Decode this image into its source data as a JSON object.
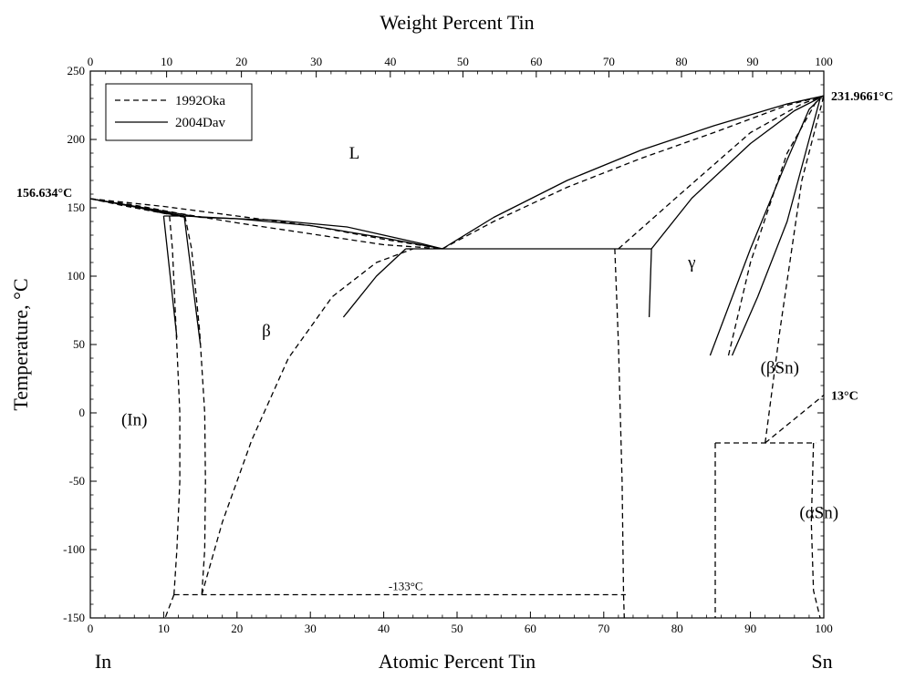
{
  "chart_data": {
    "type": "line",
    "title": "",
    "x_axis_bottom": {
      "label": "Atomic Percent Tin",
      "range": [
        0,
        100
      ],
      "ticks": [
        0,
        10,
        20,
        30,
        40,
        50,
        60,
        70,
        80,
        90,
        100
      ],
      "tick_labels": [
        "0",
        "10",
        "20",
        "30",
        "40",
        "50",
        "60",
        "70",
        "80",
        "90",
        "100"
      ]
    },
    "x_axis_top": {
      "label": "Weight Percent Tin",
      "ticks_wt": [
        0,
        10,
        20,
        30,
        40,
        50,
        60,
        70,
        80,
        90,
        100
      ],
      "ticks_at": [
        0,
        10.4,
        20.6,
        30.8,
        40.9,
        50.8,
        60.8,
        70.7,
        80.6,
        90.3,
        100
      ],
      "tick_labels": [
        "0",
        "10",
        "20",
        "30",
        "40",
        "50",
        "60",
        "70",
        "80",
        "90",
        "100"
      ]
    },
    "y_axis": {
      "label": "Temperature, °C",
      "range": [
        -150,
        250
      ],
      "ticks": [
        -150,
        -100,
        -50,
        0,
        50,
        100,
        150,
        200,
        250
      ],
      "tick_labels": [
        "-150",
        "-100",
        "-50",
        "0",
        "50",
        "100",
        "150",
        "200",
        "250"
      ]
    },
    "element_labels": {
      "left": "In",
      "right": "Sn"
    },
    "legend": {
      "position": "top-left",
      "entries": [
        {
          "label": "1992Oka",
          "style": "dashed"
        },
        {
          "label": "2004Dav",
          "style": "solid"
        }
      ]
    },
    "region_labels": [
      {
        "text": "L",
        "x": 36,
        "y": 190
      },
      {
        "text": "β",
        "x": 24,
        "y": 60
      },
      {
        "text": "γ",
        "x": 82,
        "y": 110
      },
      {
        "text": "(In)",
        "x": 6,
        "y": -5
      },
      {
        "text": "(βSn)",
        "x": 94,
        "y": 33
      },
      {
        "text": "(αSn)",
        "x": 102,
        "y": -73
      }
    ],
    "annotations": [
      {
        "text": "156.634°C",
        "x": 0,
        "y": 156.634,
        "anchor": "left"
      },
      {
        "text": "231.9661°C",
        "x": 100,
        "y": 231.9661,
        "anchor": "right"
      },
      {
        "text": "13°C",
        "x": 100,
        "y": 13,
        "anchor": "right"
      },
      {
        "text": "-133°C",
        "x": 43,
        "y": -133,
        "anchor": "center"
      }
    ],
    "series": [
      {
        "source": "1992Oka",
        "style": "dashed",
        "curves": [
          {
            "points": [
              [
                0,
                156.634
              ],
              [
                5,
                151
              ],
              [
                10,
                146
              ],
              [
                13,
                143
              ]
            ]
          },
          {
            "points": [
              [
                0,
                156.634
              ],
              [
                6,
                152
              ],
              [
                12,
                146
              ],
              [
                20,
                139
              ],
              [
                30,
                131
              ],
              [
                40,
                123
              ],
              [
                48,
                120
              ]
            ]
          },
          {
            "points": [
              [
                0,
                156.634
              ],
              [
                10,
                151
              ],
              [
                20,
                144
              ],
              [
                30,
                137
              ],
              [
                40,
                127
              ],
              [
                48,
                120
              ]
            ]
          },
          {
            "points": [
              [
                48,
                120
              ],
              [
                55,
                140
              ],
              [
                65,
                165
              ],
              [
                75,
                186
              ],
              [
                85,
                205
              ],
              [
                95,
                225
              ],
              [
                100,
                231.9661
              ]
            ]
          },
          {
            "points": [
              [
                72,
                120
              ],
              [
                80,
                158
              ],
              [
                90,
                205
              ],
              [
                97,
                226
              ],
              [
                100,
                231.9661
              ]
            ]
          },
          {
            "points": [
              [
                87,
                42
              ],
              [
                90,
                110
              ],
              [
                95,
                190
              ],
              [
                99,
                228
              ]
            ]
          },
          {
            "points": [
              [
                92,
                -22
              ],
              [
                94,
                60
              ],
              [
                97,
                170
              ],
              [
                100,
                231.9661
              ]
            ]
          },
          {
            "points": [
              [
                10.8,
                144
              ],
              [
                11.2,
                120
              ],
              [
                11.7,
                60
              ],
              [
                12.2,
                0
              ],
              [
                12.2,
                -50
              ],
              [
                11.8,
                -100
              ],
              [
                11.4,
                -133
              ]
            ]
          },
          {
            "points": [
              [
                11.4,
                -133
              ],
              [
                10.2,
                -150
              ]
            ]
          },
          {
            "points": [
              [
                12.9,
                144
              ],
              [
                13.8,
                120
              ],
              [
                14.9,
                60
              ],
              [
                15.6,
                0
              ],
              [
                15.7,
                -50
              ],
              [
                15.6,
                -100
              ],
              [
                15.2,
                -133
              ]
            ]
          },
          {
            "points": [
              [
                15.2,
                -133
              ],
              [
                18,
                -80
              ],
              [
                22,
                -20
              ],
              [
                27,
                40
              ],
              [
                33,
                85
              ],
              [
                39,
                110
              ],
              [
                44,
                120
              ]
            ]
          },
          {
            "points": [
              [
                71.5,
                120
              ],
              [
                72,
                50
              ],
              [
                72.5,
                -50
              ],
              [
                72.7,
                -133
              ],
              [
                72.8,
                -150
              ]
            ]
          },
          {
            "points": [
              [
                11.4,
                -133
              ],
              [
                73,
                -133
              ]
            ]
          },
          {
            "points": [
              [
                85.2,
                -22
              ],
              [
                85.2,
                -150
              ]
            ]
          },
          {
            "points": [
              [
                85.2,
                -22
              ],
              [
                98.9,
                -22
              ]
            ]
          },
          {
            "points": [
              [
                92,
                -22
              ],
              [
                100,
                13
              ]
            ]
          },
          {
            "points": [
              [
                98.6,
                -22
              ],
              [
                98.3,
                -80
              ],
              [
                98.6,
                -130
              ],
              [
                99.5,
                -150
              ]
            ]
          }
        ]
      },
      {
        "source": "2004Dav",
        "style": "solid",
        "curves": [
          {
            "points": [
              [
                0,
                156.634
              ],
              [
                5,
                152
              ],
              [
                10,
                146
              ],
              [
                12.8,
                144
              ]
            ]
          },
          {
            "points": [
              [
                0,
                156.634
              ],
              [
                12.8,
                144
              ],
              [
                20,
                142
              ],
              [
                30,
                137
              ],
              [
                40,
                128
              ],
              [
                48,
                120
              ]
            ]
          },
          {
            "points": [
              [
                0,
                156.634
              ],
              [
                15,
                143
              ],
              [
                25,
                141
              ],
              [
                35,
                136
              ],
              [
                45,
                124
              ],
              [
                48,
                120
              ]
            ]
          },
          {
            "points": [
              [
                48,
                120
              ],
              [
                55,
                143
              ],
              [
                65,
                170
              ],
              [
                75,
                192
              ],
              [
                85,
                210
              ],
              [
                95,
                226
              ],
              [
                100,
                231.9661
              ]
            ]
          },
          {
            "points": [
              [
                76.5,
                120
              ],
              [
                82,
                157
              ],
              [
                90,
                197
              ],
              [
                96,
                221
              ],
              [
                100,
                231.9661
              ]
            ]
          },
          {
            "points": [
              [
                84.5,
                42
              ],
              [
                90,
                120
              ],
              [
                95,
                185
              ],
              [
                98,
                222
              ],
              [
                99.5,
                230
              ]
            ]
          },
          {
            "points": [
              [
                87.5,
                42
              ],
              [
                91,
                85
              ],
              [
                95,
                140
              ],
              [
                98,
                200
              ],
              [
                99.5,
                230
              ]
            ]
          },
          {
            "points": [
              [
                10,
                144
              ],
              [
                12.8,
                144
              ]
            ]
          },
          {
            "points": [
              [
                10,
                144
              ],
              [
                11.8,
                55
              ]
            ]
          },
          {
            "points": [
              [
                12.8,
                144
              ],
              [
                15,
                50
              ]
            ]
          },
          {
            "points": [
              [
                34.5,
                70
              ],
              [
                39,
                100
              ],
              [
                43,
                120
              ]
            ]
          },
          {
            "points": [
              [
                43,
                120
              ],
              [
                76.5,
                120
              ]
            ]
          },
          {
            "points": [
              [
                76.5,
                120
              ],
              [
                76.2,
                70
              ]
            ]
          }
        ]
      }
    ]
  }
}
